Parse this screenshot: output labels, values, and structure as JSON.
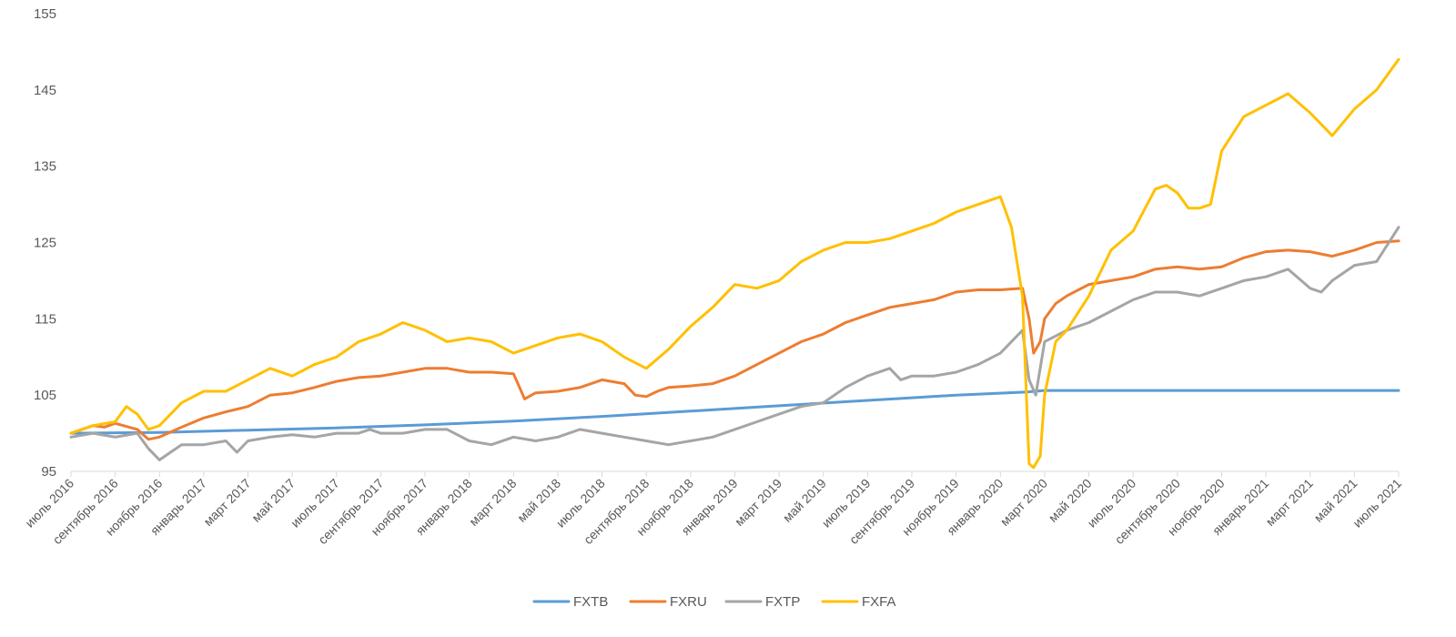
{
  "chart_data": {
    "type": "line",
    "title": "",
    "xlabel": "",
    "ylabel": "",
    "ylim": [
      95,
      155
    ],
    "yticks": [
      95,
      105,
      115,
      125,
      135,
      145,
      155
    ],
    "ytick_labels": [
      "95",
      "105",
      "115",
      "125",
      "135",
      "145",
      "155"
    ],
    "xlim": [
      0,
      60
    ],
    "xticks": [
      0,
      2,
      4,
      6,
      8,
      10,
      12,
      14,
      16,
      18,
      20,
      22,
      24,
      26,
      28,
      30,
      32,
      34,
      36,
      38,
      40,
      42,
      44,
      46,
      48,
      50,
      52,
      54,
      56,
      58,
      60
    ],
    "xtick_labels": [
      "июль 2016",
      "сентябрь 2016",
      "ноябрь 2016",
      "январь 2017",
      "март 2017",
      "май 2017",
      "июль 2017",
      "сентябрь 2017",
      "ноябрь 2017",
      "январь 2018",
      "март 2018",
      "май 2018",
      "июль 2018",
      "сентябрь 2018",
      "ноябрь 2018",
      "январь 2019",
      "март 2019",
      "май 2019",
      "июль 2019",
      "сентябрь 2019",
      "ноябрь 2019",
      "январь 2020",
      "март 2020",
      "май 2020",
      "июль 2020",
      "сентябрь 2020",
      "ноябрь 2020",
      "январь 2021",
      "март 2021",
      "май 2021",
      "июль 2021"
    ],
    "grid": false,
    "legend_position": "bottom",
    "series": [
      {
        "name": "FXTB",
        "color": "#5b9bd5",
        "x": [
          0,
          4,
          8,
          12,
          16,
          20,
          24,
          28,
          32,
          36,
          40,
          43.2,
          44,
          60
        ],
        "y": [
          100,
          100.1,
          100.4,
          100.7,
          101.1,
          101.6,
          102.2,
          102.9,
          103.6,
          104.3,
          105.0,
          105.4,
          105.6,
          105.6
        ]
      },
      {
        "name": "FXRU",
        "color": "#ed7d31",
        "x": [
          0,
          1,
          1.5,
          2,
          3,
          3.5,
          4,
          5,
          6,
          7,
          8,
          9,
          10,
          11,
          12,
          13,
          14,
          15,
          16,
          17,
          18,
          19,
          20,
          20.5,
          21,
          22,
          23,
          24,
          25,
          25.5,
          26,
          26.5,
          27,
          28,
          29,
          30,
          31,
          32,
          33,
          34,
          35,
          36,
          37,
          38,
          39,
          40,
          41,
          42,
          43,
          43.3,
          43.5,
          43.8,
          44,
          44.5,
          45,
          46,
          47,
          48,
          49,
          50,
          51,
          52,
          53,
          54,
          55,
          56,
          57,
          58,
          59,
          60
        ],
        "y": [
          100,
          101,
          100.8,
          101.3,
          100.5,
          99.2,
          99.5,
          100.8,
          102,
          102.8,
          103.5,
          105,
          105.3,
          106,
          106.8,
          107.3,
          107.5,
          108,
          108.5,
          108.5,
          108,
          108,
          107.8,
          104.5,
          105.3,
          105.5,
          106,
          107,
          106.5,
          105,
          104.8,
          105.5,
          106,
          106.2,
          106.5,
          107.5,
          109,
          110.5,
          112,
          113,
          114.5,
          115.5,
          116.5,
          117,
          117.5,
          118.5,
          118.8,
          118.8,
          119,
          115,
          110.5,
          112,
          115,
          117,
          118,
          119.5,
          120,
          120.5,
          121.5,
          121.8,
          121.5,
          121.8,
          123,
          123.8,
          124,
          123.8,
          123.2,
          124,
          125,
          125.2
        ]
      },
      {
        "name": "FXTP",
        "color": "#a5a5a5",
        "x": [
          0,
          1,
          2,
          3,
          3.5,
          4,
          4.5,
          5,
          6,
          7,
          7.5,
          8,
          9,
          10,
          11,
          12,
          13,
          13.5,
          14,
          15,
          16,
          17,
          18,
          19,
          20,
          21,
          22,
          23,
          24,
          25,
          26,
          27,
          28,
          29,
          30,
          31,
          32,
          33,
          34,
          35,
          36,
          37,
          37.5,
          38,
          39,
          40,
          41,
          42,
          43,
          43.3,
          43.6,
          44,
          45,
          46,
          47,
          48,
          49,
          50,
          51,
          52,
          53,
          54,
          55,
          56,
          56.5,
          57,
          58,
          59,
          60
        ],
        "y": [
          99.5,
          100,
          99.5,
          100,
          98,
          96.5,
          97.5,
          98.5,
          98.5,
          99,
          97.5,
          99,
          99.5,
          99.8,
          99.5,
          100,
          100,
          100.5,
          100,
          100,
          100.5,
          100.5,
          99,
          98.5,
          99.5,
          99,
          99.5,
          100.5,
          100,
          99.5,
          99,
          98.5,
          99,
          99.5,
          100.5,
          101.5,
          102.5,
          103.5,
          104,
          106,
          107.5,
          108.5,
          107,
          107.5,
          107.5,
          108,
          109,
          110.5,
          113.5,
          107,
          105,
          112,
          113.5,
          114.5,
          116,
          117.5,
          118.5,
          118.5,
          118,
          119,
          120,
          120.5,
          121.5,
          119,
          118.5,
          120,
          122,
          122.5,
          127
        ]
      },
      {
        "name": "FXFA",
        "color": "#ffc000",
        "x": [
          0,
          1,
          2,
          2.5,
          3,
          3.5,
          4,
          5,
          6,
          7,
          8,
          9,
          10,
          11,
          12,
          13,
          14,
          15,
          16,
          17,
          18,
          19,
          20,
          21,
          22,
          23,
          24,
          25,
          26,
          27,
          28,
          29,
          30,
          31,
          32,
          33,
          34,
          35,
          36,
          37,
          38,
          39,
          40,
          41,
          42,
          42.5,
          43,
          43.3,
          43.5,
          43.8,
          44,
          44.5,
          45,
          46,
          47,
          48,
          49,
          49.5,
          50,
          50.5,
          51,
          51.5,
          52,
          53,
          54,
          55,
          56,
          57,
          58,
          59,
          60
        ],
        "y": [
          100,
          101,
          101.5,
          103.5,
          102.5,
          100.5,
          101,
          104,
          105.5,
          105.5,
          107,
          108.5,
          107.5,
          109,
          110,
          112,
          113,
          114.5,
          113.5,
          112,
          112.5,
          112,
          110.5,
          111.5,
          112.5,
          113,
          112,
          110,
          108.5,
          111,
          114,
          116.5,
          119.5,
          119,
          120,
          122.5,
          124,
          125,
          125,
          125.5,
          126.5,
          127.5,
          129,
          130,
          131,
          127,
          118,
          96,
          95.5,
          97,
          105,
          112,
          113.5,
          118,
          124,
          126.5,
          132,
          132.5,
          131.5,
          129.5,
          129.5,
          130,
          137,
          141.5,
          143,
          144.5,
          142,
          139,
          142.5,
          145,
          149
        ]
      }
    ]
  },
  "legend": [
    {
      "label": "FXTB",
      "color": "#5b9bd5"
    },
    {
      "label": "FXRU",
      "color": "#ed7d31"
    },
    {
      "label": "FXTP",
      "color": "#a5a5a5"
    },
    {
      "label": "FXFA",
      "color": "#ffc000"
    }
  ]
}
